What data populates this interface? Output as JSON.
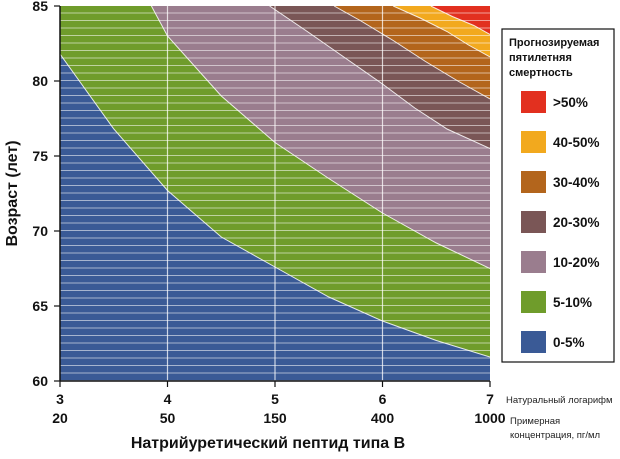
{
  "chart_data": {
    "type": "area",
    "title": "",
    "xlabel": "Натрийуретический пептид типа В",
    "ylabel": "Возраст (лет)",
    "xlim": [
      3,
      7
    ],
    "ylim": [
      60,
      85
    ],
    "x_ticks": [
      "3",
      "4",
      "5",
      "6",
      "7"
    ],
    "x_secondary_ticks": [
      "20",
      "50",
      "150",
      "400",
      "1000"
    ],
    "x_scale_note": "Натуральный логарифм",
    "x_secondary_note_line1": "Примерная",
    "x_secondary_note_line2": "концентрация, пг/мл",
    "y_ticks": [
      "60",
      "65",
      "70",
      "75",
      "80",
      "85"
    ],
    "legend": {
      "title_lines": [
        "Прогнозируемая",
        "пятилетняя",
        "смертность"
      ],
      "position": "right"
    },
    "series": [
      {
        "name": "0-5%",
        "color": "#3a5a96",
        "boundary_x": [],
        "boundary_y": []
      },
      {
        "name": "5-10%",
        "color": "#6f9c2b",
        "boundary_x": [
          3.0,
          3.5,
          4.0,
          4.5,
          5.0,
          5.5,
          6.0,
          6.5,
          7.0
        ],
        "boundary_y": [
          81.8,
          76.8,
          72.7,
          69.6,
          67.6,
          65.6,
          64.0,
          62.7,
          61.6
        ]
      },
      {
        "name": "10-20%",
        "color": "#9a7d8e",
        "boundary_x": [
          3.85,
          4.0,
          4.5,
          5.0,
          5.5,
          6.0,
          6.5,
          7.0
        ],
        "boundary_y": [
          85.0,
          83.0,
          79.0,
          75.9,
          73.5,
          71.2,
          69.2,
          67.5
        ]
      },
      {
        "name": "20-30%",
        "color": "#7a5656",
        "boundary_x": [
          4.95,
          5.3,
          5.7,
          6.0,
          6.3,
          6.6,
          7.0
        ],
        "boundary_y": [
          85.0,
          83.3,
          81.3,
          79.8,
          78.2,
          76.8,
          75.5
        ]
      },
      {
        "name": "30-40%",
        "color": "#b3651c",
        "boundary_x": [
          5.55,
          5.8,
          6.1,
          6.4,
          6.7,
          7.0
        ],
        "boundary_y": [
          85.0,
          84.0,
          82.7,
          81.3,
          80.0,
          78.8
        ]
      },
      {
        "name": "40-50%",
        "color": "#f2a91e",
        "boundary_x": [
          6.1,
          6.35,
          6.6,
          6.8,
          7.0
        ],
        "boundary_y": [
          85.0,
          84.2,
          83.3,
          82.4,
          81.6
        ]
      },
      {
        "name": ">50%",
        "color": "#e2301f",
        "boundary_x": [
          6.45,
          6.65,
          6.85,
          7.0
        ],
        "boundary_y": [
          85.0,
          84.3,
          83.7,
          83.1
        ]
      }
    ]
  }
}
